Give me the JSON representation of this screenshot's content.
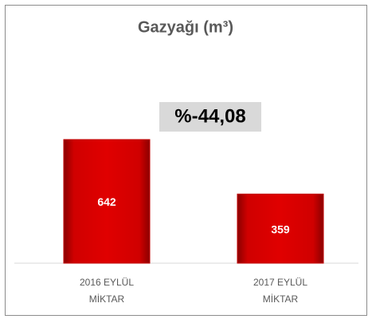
{
  "chart_data": {
    "type": "bar",
    "title": "Gazyağı (m³)",
    "annotation": "%-44,08",
    "categories": [
      "2016 EYLÜL MİKTAR",
      "2017 EYLÜL MİKTAR"
    ],
    "values": [
      642,
      359
    ],
    "color": "#c00000"
  }
}
